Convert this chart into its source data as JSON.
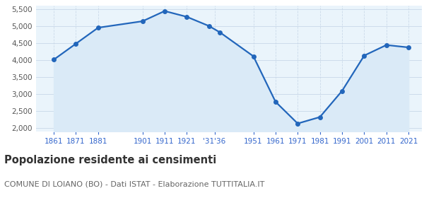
{
  "years": [
    1861,
    1871,
    1881,
    1901,
    1911,
    1921,
    1931,
    1936,
    1951,
    1961,
    1971,
    1981,
    1991,
    2001,
    2011,
    2021
  ],
  "population": [
    4020,
    4490,
    4960,
    5150,
    5450,
    5280,
    5010,
    4820,
    4120,
    2780,
    2140,
    2330,
    3100,
    4140,
    4450,
    4380
  ],
  "line_color": "#2266bb",
  "fill_color": "#daeaf7",
  "marker_color": "#2266bb",
  "grid_color": "#c8d8e8",
  "background_color": "#eaf4fb",
  "ylim": [
    1900,
    5600
  ],
  "yticks": [
    2000,
    2500,
    3000,
    3500,
    4000,
    4500,
    5000,
    5500
  ],
  "title": "Popolazione residente ai censimenti",
  "subtitle": "COMUNE DI LOIANO (BO) - Dati ISTAT - Elaborazione TUTTITALIA.IT",
  "title_fontsize": 10.5,
  "subtitle_fontsize": 8.0,
  "tick_color": "#3366cc",
  "tick_fontsize": 7.5
}
